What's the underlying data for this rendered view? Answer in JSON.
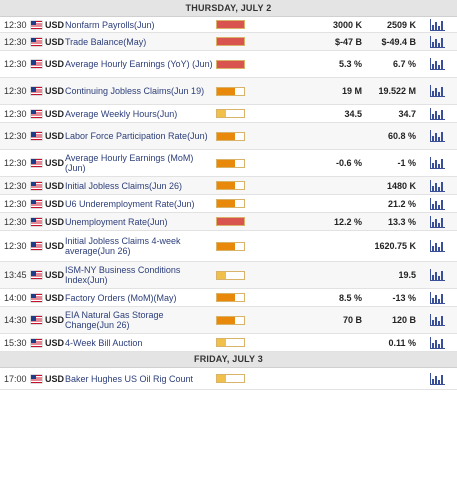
{
  "sections": [
    {
      "header": "THURSDAY, JULY 2",
      "rows": [
        {
          "time": "12:30",
          "currency": "USD",
          "event": "Nonfarm Payrolls(Jun)",
          "impact": "high",
          "actual": "3000 K",
          "previous": "2509 K"
        },
        {
          "time": "12:30",
          "currency": "USD",
          "event": "Trade Balance(May)",
          "impact": "high",
          "actual": "$-47 B",
          "previous": "$-49.4 B"
        },
        {
          "time": "12:30",
          "currency": "USD",
          "event": "Average Hourly Earnings (YoY) (Jun)",
          "impact": "high",
          "actual": "5.3 %",
          "previous": "6.7 %"
        },
        {
          "time": "12:30",
          "currency": "USD",
          "event": "Continuing Jobless Claims(Jun 19)",
          "impact": "medium",
          "actual": "19 M",
          "previous": "19.522 M"
        },
        {
          "time": "12:30",
          "currency": "USD",
          "event": "Average Weekly Hours(Jun)",
          "impact": "low",
          "actual": "34.5",
          "previous": "34.7"
        },
        {
          "time": "12:30",
          "currency": "USD",
          "event": "Labor Force Participation Rate(Jun)",
          "impact": "medium",
          "actual": "",
          "previous": "60.8 %"
        },
        {
          "time": "12:30",
          "currency": "USD",
          "event": "Average Hourly Earnings (MoM) (Jun)",
          "impact": "medium",
          "actual": "-0.6 %",
          "previous": "-1 %"
        },
        {
          "time": "12:30",
          "currency": "USD",
          "event": "Initial Jobless Claims(Jun 26)",
          "impact": "medium",
          "actual": "",
          "previous": "1480 K"
        },
        {
          "time": "12:30",
          "currency": "USD",
          "event": "U6 Underemployment Rate(Jun)",
          "impact": "medium",
          "actual": "",
          "previous": "21.2 %"
        },
        {
          "time": "12:30",
          "currency": "USD",
          "event": "Unemployment Rate(Jun)",
          "impact": "high",
          "actual": "12.2 %",
          "previous": "13.3 %"
        },
        {
          "time": "12:30",
          "currency": "USD",
          "event": "Initial Jobless Claims 4-week average(Jun 26)",
          "impact": "medium",
          "actual": "",
          "previous": "1620.75 K"
        },
        {
          "time": "13:45",
          "currency": "USD",
          "event": "ISM-NY Business Conditions Index(Jun)",
          "impact": "low",
          "actual": "",
          "previous": "19.5"
        },
        {
          "time": "14:00",
          "currency": "USD",
          "event": "Factory Orders (MoM)(May)",
          "impact": "medium",
          "actual": "8.5 %",
          "previous": "-13 %"
        },
        {
          "time": "14:30",
          "currency": "USD",
          "event": "EIA Natural Gas Storage Change(Jun 26)",
          "impact": "medium",
          "actual": "70 B",
          "previous": "120 B"
        },
        {
          "time": "15:30",
          "currency": "USD",
          "event": "4-Week Bill Auction",
          "impact": "low",
          "actual": "",
          "previous": "0.11 %"
        }
      ]
    },
    {
      "header": "FRIDAY, JULY 3",
      "rows": [
        {
          "time": "17:00",
          "currency": "USD",
          "event": "Baker Hughes US Oil Rig Count",
          "impact": "low",
          "actual": "",
          "previous": ""
        }
      ]
    }
  ],
  "icons": {
    "flag": "us-flag-icon",
    "chart": "bar-chart-icon"
  },
  "colors": {
    "high": "#d9534f",
    "medium": "#e8890c",
    "low": "#f0c04a",
    "link": "#2c3e7a"
  }
}
